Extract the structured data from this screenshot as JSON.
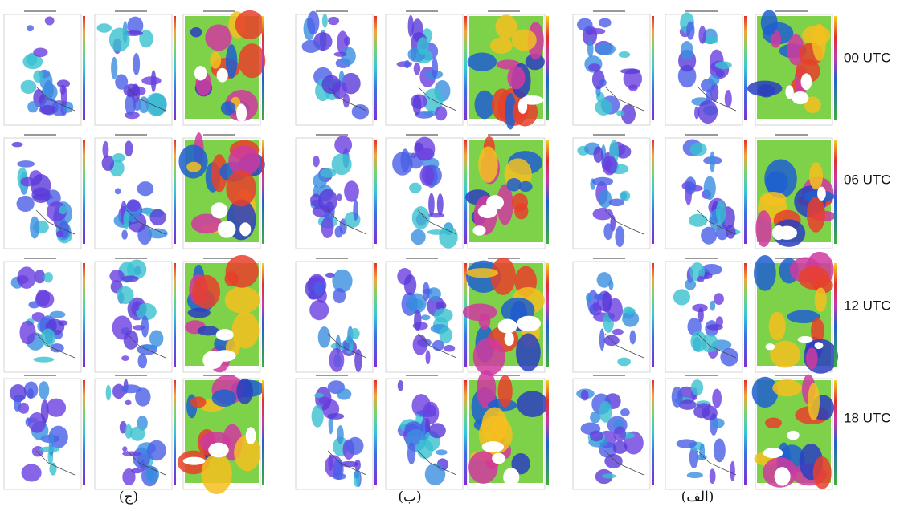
{
  "row_labels": [
    "00 UTC",
    "06 UTC",
    "12 UTC",
    "18 UTC"
  ],
  "group_labels": [
    "(ج)",
    "(ب)",
    "(الف)"
  ]
}
